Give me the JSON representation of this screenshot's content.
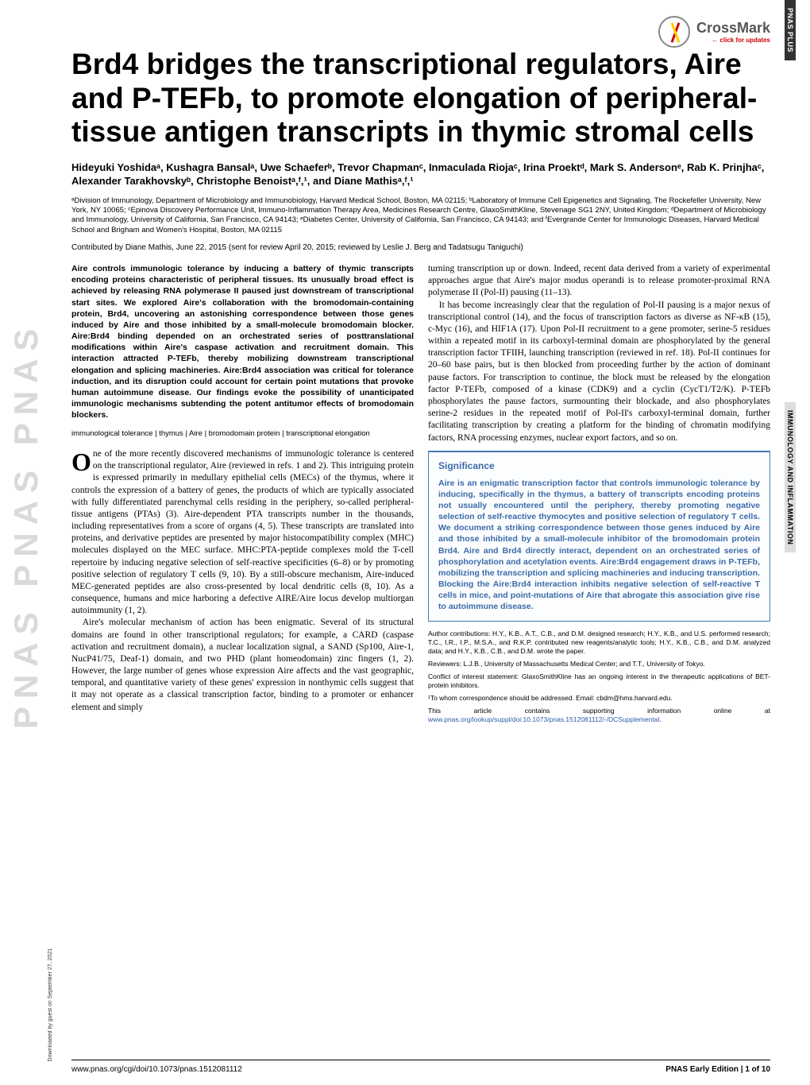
{
  "crossmark": {
    "label": "CrossMark",
    "sub": "← click for updates"
  },
  "right_tags": {
    "top": "PNAS PLUS",
    "mid": "IMMUNOLOGY AND INFLAMMATION"
  },
  "left_banner": "PNAS  PNAS  PNAS",
  "title": "Brd4 bridges the transcriptional regulators, Aire and P-TEFb, to promote elongation of peripheral-tissue antigen transcripts in thymic stromal cells",
  "authors_html": "Hideyuki Yoshidaᵃ, Kushagra Bansalᵃ, Uwe Schaeferᵇ, Trevor Chapmanᶜ, Inmaculada Riojaᶜ, Irina Proektᵈ, Mark S. Andersonᵉ, Rab K. Prinjhaᶜ, Alexander Tarakhovskyᵇ, Christophe Benoistᵃ,ᶠ,¹, and Diane Mathisᵃ,ᶠ,¹",
  "affiliations": "ᵃDivision of Immunology, Department of Microbiology and Immunobiology, Harvard Medical School, Boston, MA 02115; ᵇLaboratory of Immune Cell Epigenetics and Signaling, The Rockefeller University, New York, NY 10065; ᶜEpinova Discovery Performance Unit, Immuno-Inflammation Therapy Area, Medicines Research Centre, GlaxoSmithKline, Stevenage SG1 2NY, United Kingdom; ᵈDepartment of Microbiology and Immunology, University of California, San Francisco, CA 94143; ᵉDiabetes Center, University of California, San Francisco, CA 94143; and ᶠEvergrande Center for Immunologic Diseases, Harvard Medical School and Brigham and Women's Hospital, Boston, MA 02115",
  "contributed": "Contributed by Diane Mathis, June 22, 2015 (sent for review April 20, 2015; reviewed by Leslie J. Berg and Tadatsugu Taniguchi)",
  "abstract": "Aire controls immunologic tolerance by inducing a battery of thymic transcripts encoding proteins characteristic of peripheral tissues. Its unusually broad effect is achieved by releasing RNA polymerase II paused just downstream of transcriptional start sites. We explored Aire's collaboration with the bromodomain-containing protein, Brd4, uncovering an astonishing correspondence between those genes induced by Aire and those inhibited by a small-molecule bromodomain blocker. Aire:Brd4 binding depended on an orchestrated series of posttranslational modifications within Aire's caspase activation and recruitment domain. This interaction attracted P-TEFb, thereby mobilizing downstream transcriptional elongation and splicing machineries. Aire:Brd4 association was critical for tolerance induction, and its disruption could account for certain point mutations that provoke human autoimmune disease. Our findings evoke the possibility of unanticipated immunologic mechanisms subtending the potent antitumor effects of bromodomain blockers.",
  "keywords": "immunological tolerance | thymus | Aire | bromodomain protein | transcriptional elongation",
  "body": {
    "p1_first": "O",
    "p1": "ne of the more recently discovered mechanisms of immunologic tolerance is centered on the transcriptional regulator, Aire (reviewed in refs. 1 and 2). This intriguing protein is expressed primarily in medullary epithelial cells (MECs) of the thymus, where it controls the expression of a battery of genes, the products of which are typically associated with fully differentiated parenchymal cells residing in the periphery, so-called peripheral-tissue antigens (PTAs) (3). Aire-dependent PTA transcripts number in the thousands, including representatives from a score of organs (4, 5). These transcripts are translated into proteins, and derivative peptides are presented by major histocompatibility complex (MHC) molecules displayed on the MEC surface. MHC:PTA-peptide complexes mold the T-cell repertoire by inducing negative selection of self-reactive specificities (6–8) or by promoting positive selection of regulatory T cells (9, 10). By a still-obscure mechanism, Aire-induced MEC-generated peptides are also cross-presented by local dendritic cells (8, 10). As a consequence, humans and mice harboring a defective AIRE/Aire locus develop multiorgan autoimmunity (1, 2).",
    "p2": "Aire's molecular mechanism of action has been enigmatic. Several of its structural domains are found in other transcriptional regulators; for example, a CARD (caspase activation and recruitment domain), a nuclear localization signal, a SAND (Sp100, Aire-1, NucP41/75, Deaf-1) domain, and two PHD (plant homeodomain) zinc fingers (1, 2). However, the large number of genes whose expression Aire affects and the vast geographic, temporal, and quantitative variety of these genes' expression in nonthymic cells suggest that it may not operate as a classical transcription factor, binding to a promoter or enhancer element and simply",
    "r1": "turning transcription up or down. Indeed, recent data derived from a variety of experimental approaches argue that Aire's major modus operandi is to release promoter-proximal RNA polymerase II (Pol-II) pausing (11–13).",
    "r2": "It has become increasingly clear that the regulation of Pol-II pausing is a major nexus of transcriptional control (14), and the focus of transcription factors as diverse as NF-κB (15), c-Myc (16), and HIF1A (17). Upon Pol-II recruitment to a gene promoter, serine-5 residues within a repeated motif in its carboxyl-terminal domain are phosphorylated by the general transcription factor TFIIH, launching transcription (reviewed in ref. 18). Pol-II continues for 20–60 base pairs, but is then blocked from proceeding further by the action of dominant pause factors. For transcription to continue, the block must be released by the elongation factor P-TEFb, composed of a kinase (CDK9) and a cyclin (CycT1/T2/K). P-TEFb phosphorylates the pause factors, surmounting their blockade, and also phosphorylates serine-2 residues in the repeated motif of Pol-II's carboxyl-terminal domain, further facilitating transcription by creating a platform for the binding of chromatin modifying factors, RNA processing enzymes, nuclear export factors, and so on."
  },
  "significance": {
    "heading": "Significance",
    "text": "Aire is an enigmatic transcription factor that controls immunologic tolerance by inducing, specifically in the thymus, a battery of transcripts encoding proteins not usually encountered until the periphery, thereby promoting negative selection of self-reactive thymocytes and positive selection of regulatory T cells. We document a striking correspondence between those genes induced by Aire and those inhibited by a small-molecule inhibitor of the bromodomain protein Brd4. Aire and Brd4 directly interact, dependent on an orchestrated series of phosphorylation and acetylation events. Aire:Brd4 engagement draws in P-TEFb, mobilizing the transcription and splicing machineries and inducing transcription. Blocking the Aire:Brd4 interaction inhibits negative selection of self-reactive T cells in mice, and point-mutations of Aire that abrogate this association give rise to autoimmune disease."
  },
  "notes": {
    "auth": "Author contributions: H.Y., K.B., A.T., C.B., and D.M. designed research; H.Y., K.B., and U.S. performed research; T.C., I.R., I.P., M.S.A., and R.K.P. contributed new reagents/analytic tools; H.Y., K.B., C.B., and D.M. analyzed data; and H.Y., K.B., C.B., and D.M. wrote the paper.",
    "rev": "Reviewers: L.J.B., University of Massachusetts Medical Center; and T.T., University of Tokyo.",
    "coi": "Conflict of interest statement: GlaxoSmithKline has an ongoing interest in the therapeutic applications of BET-protein inhibitors.",
    "corr": "¹To whom correspondence should be addressed. Email: cbdm@hms.harvard.edu.",
    "supp_pre": "This article contains supporting information online at ",
    "supp_link": "www.pnas.org/lookup/suppl/doi:10.1073/pnas.1512081112/-/DCSupplemental",
    "supp_post": "."
  },
  "footer": {
    "left": "www.pnas.org/cgi/doi/10.1073/pnas.1512081112",
    "right": "PNAS Early Edition | 1 of 10"
  },
  "download": "Downloaded by guest on September 27, 2021"
}
